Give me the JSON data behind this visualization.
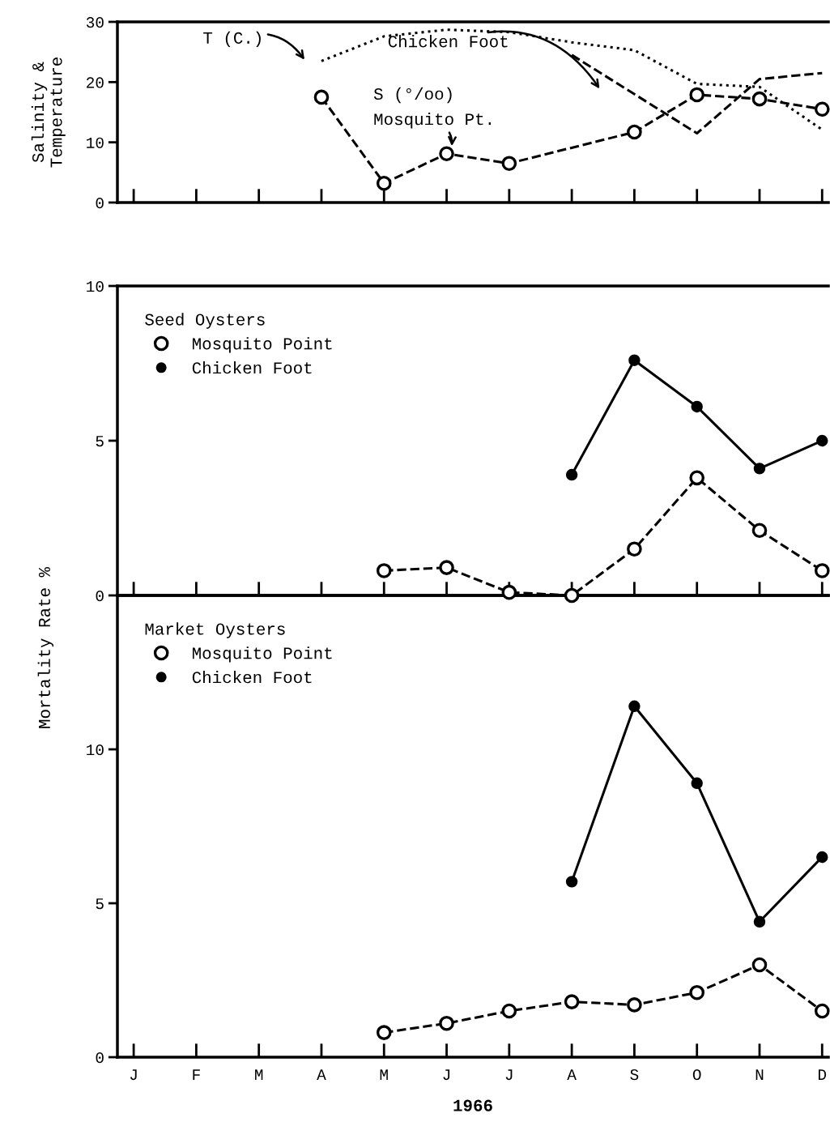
{
  "chart_data": [
    {
      "type": "line",
      "ylabel": "Salinity &\nTemperature",
      "categories": [
        null,
        null,
        null,
        null,
        null,
        null,
        null,
        null,
        null,
        null,
        null,
        null
      ],
      "ylim": [
        0,
        30
      ],
      "yticks": [
        0,
        10,
        20,
        30
      ],
      "tick_labels": "y",
      "grid": false,
      "legend": false,
      "annotations": [
        "T (C.)",
        "Chicken Foot",
        "S (°/oo)",
        "Mosquito Pt."
      ],
      "series": [
        {
          "color": "#000000",
          "marker": "none",
          "line_style": "dotted",
          "values": [
            null,
            null,
            null,
            23.5,
            27.6,
            28.7,
            28.3,
            26.6,
            25.3,
            19.7,
            19.2,
            12.1
          ]
        },
        {
          "color": "#000000",
          "marker": "none",
          "line_style": "dashed",
          "values": [
            null,
            null,
            null,
            null,
            null,
            null,
            null,
            24.5,
            null,
            11.5,
            20.5,
            21.5
          ]
        },
        {
          "color": "#000000",
          "marker": "circle",
          "line_style": "dashed",
          "values": [
            null,
            null,
            null,
            17.5,
            3.2,
            8.1,
            6.5,
            null,
            11.7,
            17.9,
            17.2,
            15.5
          ]
        }
      ]
    },
    {
      "type": "line",
      "ylabel": "Mortality Rate %",
      "legend_title": "Seed Oysters",
      "legend": "top left",
      "categories": [
        null,
        null,
        null,
        null,
        null,
        null,
        null,
        null,
        null,
        null,
        null,
        null
      ],
      "ylim": [
        0,
        10
      ],
      "yticks": [
        0,
        5,
        10
      ],
      "tick_labels": "y",
      "grid": false,
      "series": [
        {
          "name": "Mosquito Point",
          "color": "#000000",
          "marker": "circle",
          "line_style": "dashed",
          "values": [
            null,
            null,
            null,
            null,
            0.8,
            0.9,
            0.1,
            0.0,
            1.5,
            3.8,
            2.1,
            0.8
          ]
        },
        {
          "name": "Chicken Foot",
          "color": "#000000",
          "marker": "circle",
          "line_style": "solid",
          "values": [
            null,
            null,
            null,
            null,
            null,
            null,
            null,
            3.9,
            7.6,
            6.1,
            4.1,
            5.0
          ]
        }
      ]
    },
    {
      "type": "line",
      "xlabel": "1966",
      "legend_title": "Market Oysters",
      "legend": "top left",
      "categories": [
        "J",
        "F",
        "M",
        "A",
        "M",
        "J",
        "J",
        "A",
        "S",
        "O",
        "N",
        "D"
      ],
      "ylim": [
        0,
        15
      ],
      "yticks": [
        0,
        5,
        10
      ],
      "grid": false,
      "series": [
        {
          "name": "Mosquito Point",
          "color": "#000000",
          "marker": "circle",
          "line_style": "dashed",
          "values": [
            null,
            null,
            null,
            null,
            0.8,
            1.1,
            1.5,
            1.8,
            1.7,
            2.1,
            3.0,
            1.5
          ]
        },
        {
          "name": "Chicken Foot",
          "color": "#000000",
          "marker": "circle",
          "line_style": "solid",
          "values": [
            null,
            null,
            null,
            null,
            null,
            null,
            null,
            5.7,
            11.4,
            8.9,
            4.4,
            6.5
          ]
        }
      ]
    }
  ]
}
